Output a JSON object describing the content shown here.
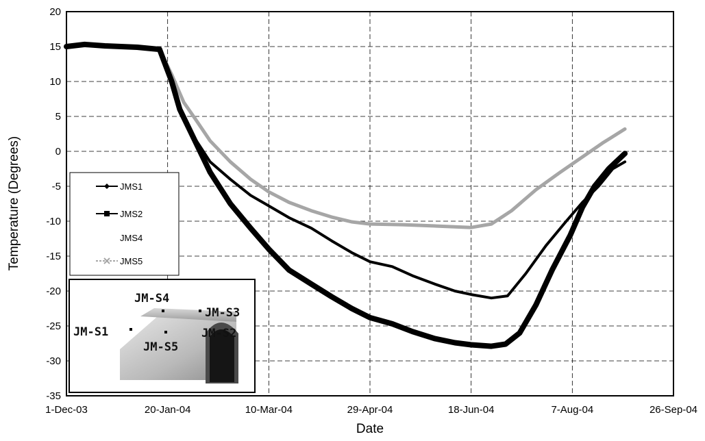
{
  "chart_data": {
    "type": "line",
    "title": "",
    "xlabel": "Date",
    "ylabel": "Temperature (Degrees)",
    "xlim": [
      "2003-12-01",
      "2004-09-26"
    ],
    "ylim": [
      -35,
      20
    ],
    "x_ticks": [
      "1-Dec-03",
      "20-Jan-04",
      "10-Mar-04",
      "29-Apr-04",
      "18-Jun-04",
      "7-Aug-04",
      "26-Sep-04"
    ],
    "y_ticks": [
      20,
      15,
      10,
      5,
      0,
      -5,
      -10,
      -15,
      -20,
      -25,
      -30,
      -35
    ],
    "grid": "dashed, both axes",
    "legend_position": "left, middle",
    "series": [
      {
        "name": "JMS1",
        "color": "#000000",
        "marker": "diamond",
        "points": [
          [
            "2003-12-01",
            15
          ],
          [
            "2003-12-10",
            15.3
          ],
          [
            "2003-12-20",
            15.1
          ],
          [
            "2004-01-05",
            14.9
          ],
          [
            "2004-01-16",
            14.6
          ],
          [
            "2004-01-22",
            10
          ],
          [
            "2004-01-26",
            6
          ],
          [
            "2004-02-01",
            2.5
          ],
          [
            "2004-02-10",
            -1.5
          ],
          [
            "2004-02-20",
            -4
          ],
          [
            "2004-03-01",
            -6.3
          ],
          [
            "2004-03-10",
            -7.8
          ],
          [
            "2004-03-20",
            -9.5
          ],
          [
            "2004-03-31",
            -11
          ],
          [
            "2004-04-10",
            -12.8
          ],
          [
            "2004-04-20",
            -14.5
          ],
          [
            "2004-04-29",
            -15.8
          ],
          [
            "2004-05-10",
            -16.5
          ],
          [
            "2004-05-20",
            -17.8
          ],
          [
            "2004-05-31",
            -19
          ],
          [
            "2004-06-10",
            -20
          ],
          [
            "2004-06-18",
            -20.5
          ],
          [
            "2004-06-28",
            -21
          ],
          [
            "2004-07-06",
            -20.7
          ],
          [
            "2004-07-15",
            -17.5
          ],
          [
            "2004-07-25",
            -13.5
          ],
          [
            "2004-08-04",
            -10
          ],
          [
            "2004-08-12",
            -7.3
          ],
          [
            "2004-08-20",
            -5
          ],
          [
            "2004-08-27",
            -2.5
          ],
          [
            "2004-09-02",
            -1.5
          ]
        ]
      },
      {
        "name": "JMS2",
        "color": "#000000",
        "marker": "square",
        "points": [
          [
            "2003-12-01",
            15
          ],
          [
            "2003-12-10",
            15.3
          ],
          [
            "2003-12-20",
            15.1
          ],
          [
            "2004-01-05",
            14.9
          ],
          [
            "2004-01-16",
            14.6
          ],
          [
            "2004-01-22",
            10
          ],
          [
            "2004-01-26",
            6
          ],
          [
            "2004-01-31",
            3
          ],
          [
            "2004-02-10",
            -3
          ],
          [
            "2004-02-20",
            -7.5
          ],
          [
            "2004-03-01",
            -11
          ],
          [
            "2004-03-10",
            -14
          ],
          [
            "2004-03-20",
            -17
          ],
          [
            "2004-03-31",
            -19
          ],
          [
            "2004-04-10",
            -20.8
          ],
          [
            "2004-04-20",
            -22.5
          ],
          [
            "2004-04-29",
            -23.8
          ],
          [
            "2004-05-10",
            -24.7
          ],
          [
            "2004-05-20",
            -25.8
          ],
          [
            "2004-05-31",
            -26.8
          ],
          [
            "2004-06-10",
            -27.4
          ],
          [
            "2004-06-18",
            -27.7
          ],
          [
            "2004-06-28",
            -27.9
          ],
          [
            "2004-07-05",
            -27.6
          ],
          [
            "2004-07-12",
            -26
          ],
          [
            "2004-07-20",
            -22
          ],
          [
            "2004-07-28",
            -17
          ],
          [
            "2004-08-06",
            -12
          ],
          [
            "2004-08-12",
            -8
          ],
          [
            "2004-08-18",
            -5
          ],
          [
            "2004-08-25",
            -2.5
          ],
          [
            "2004-09-02",
            -0.3
          ]
        ]
      },
      {
        "name": "JMS4",
        "color": "#ffffff",
        "marker": "none",
        "points": []
      },
      {
        "name": "JMS5",
        "color": "#a6a6a6",
        "marker": "x",
        "points": [
          [
            "2003-12-01",
            15
          ],
          [
            "2003-12-10",
            15.3
          ],
          [
            "2003-12-20",
            15.1
          ],
          [
            "2004-01-05",
            14.9
          ],
          [
            "2004-01-16",
            14.6
          ],
          [
            "2004-01-22",
            11
          ],
          [
            "2004-01-28",
            7
          ],
          [
            "2004-02-03",
            4.5
          ],
          [
            "2004-02-10",
            1.5
          ],
          [
            "2004-02-20",
            -1.5
          ],
          [
            "2004-03-01",
            -4
          ],
          [
            "2004-03-10",
            -5.8
          ],
          [
            "2004-03-20",
            -7.3
          ],
          [
            "2004-03-31",
            -8.5
          ],
          [
            "2004-04-10",
            -9.4
          ],
          [
            "2004-04-20",
            -10.1
          ],
          [
            "2004-04-29",
            -10.4
          ],
          [
            "2004-05-15",
            -10.5
          ],
          [
            "2004-06-01",
            -10.7
          ],
          [
            "2004-06-18",
            -10.9
          ],
          [
            "2004-06-28",
            -10.4
          ],
          [
            "2004-07-08",
            -8.5
          ],
          [
            "2004-07-20",
            -5.5
          ],
          [
            "2004-08-01",
            -3
          ],
          [
            "2004-08-12",
            -0.8
          ],
          [
            "2004-08-22",
            1.2
          ],
          [
            "2004-09-02",
            3.2
          ]
        ]
      }
    ]
  },
  "inset": {
    "labels": [
      "JM-S4",
      "JM-S3",
      "JM-S1",
      "JM-S5",
      "JM-S2"
    ],
    "colors": {
      "floor": "#c8c8c8",
      "tunnel_dark": "#2a2a2a",
      "tunnel_mid": "#6e6e6e"
    }
  }
}
